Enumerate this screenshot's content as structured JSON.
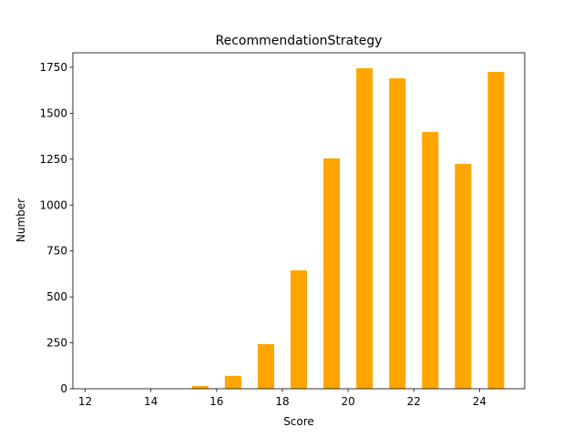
{
  "chart_data": {
    "type": "bar",
    "title": "RecommendationStrategy",
    "xlabel": "Score",
    "ylabel": "Number",
    "x": [
      12.5,
      13.5,
      14.5,
      15.5,
      16.5,
      17.5,
      18.5,
      19.5,
      20.5,
      21.5,
      22.5,
      23.5,
      24.5
    ],
    "values": [
      0,
      0,
      0,
      15,
      70,
      243,
      645,
      1254,
      1745,
      1690,
      1398,
      1224,
      1725
    ],
    "bar_width": 0.5,
    "color": "#ffa500",
    "xlim": [
      11.625,
      25.375
    ],
    "xticks": [
      12,
      14,
      16,
      18,
      20,
      22,
      24
    ],
    "ylim": [
      0,
      1829
    ],
    "yticks": [
      0,
      250,
      500,
      750,
      1000,
      1250,
      1500,
      1750
    ]
  }
}
